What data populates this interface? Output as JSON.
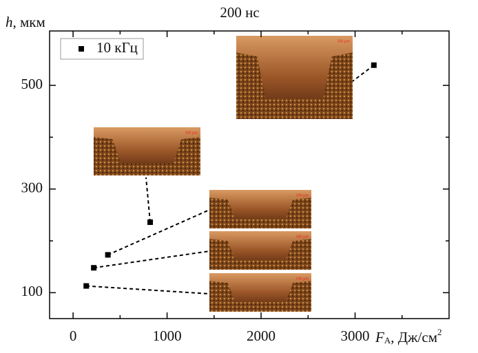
{
  "chart_data": {
    "type": "scatter",
    "title": "200 нс",
    "y_label_symbol": "h",
    "y_label_unit": ", мкм",
    "x_label_symbol": "F",
    "x_label_sub": "A",
    "x_label_unit": ", Дж/см",
    "x_label_sup": "2",
    "series": [
      {
        "name": "10 кГц",
        "color": "#000000",
        "x": [
          140,
          220,
          370,
          820,
          3200
        ],
        "values": [
          113,
          148,
          173,
          236,
          539
        ]
      }
    ],
    "xlim": [
      -250,
      4000
    ],
    "ylim": [
      50,
      605
    ],
    "xticks": [
      0,
      1000,
      2000,
      3000
    ],
    "x_minor_ticks": [
      500,
      1500,
      2500,
      3500
    ],
    "yticks": [
      100,
      300,
      500
    ],
    "y_minor_ticks": [
      200,
      400
    ],
    "legend": "upper left",
    "inset_labels": [
      "100 µm",
      "100 µm",
      "100 µm",
      "100 µm",
      "100 µm"
    ]
  }
}
